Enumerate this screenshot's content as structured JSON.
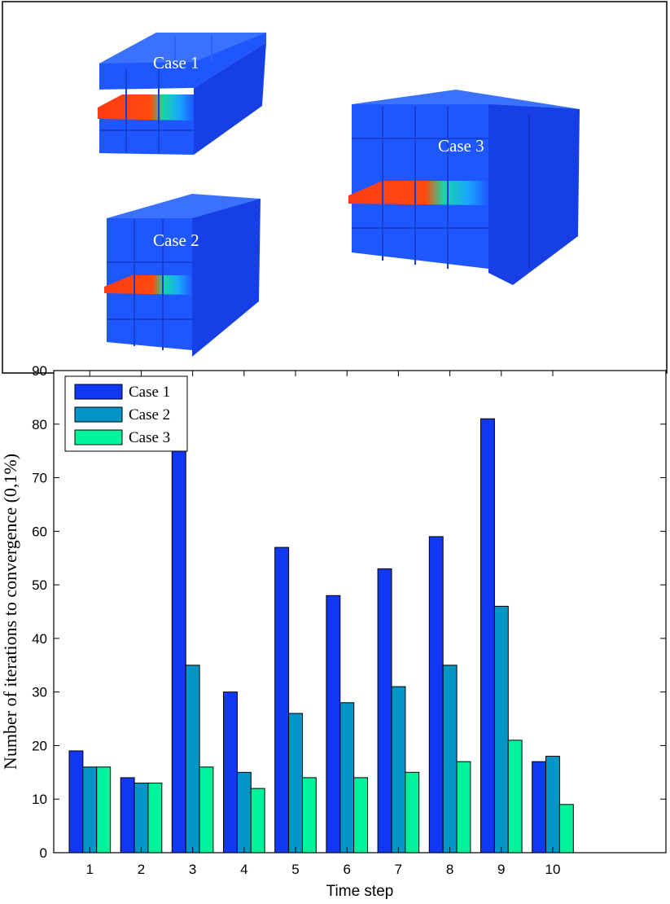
{
  "illustration": {
    "labels": [
      "Case 1",
      "Case 2",
      "Case 3"
    ],
    "colors": {
      "mesh": "#1f57ff",
      "hot": "#ff3b14",
      "cool": "#00c9d8"
    }
  },
  "chart_data": {
    "type": "bar",
    "title": "",
    "xlabel": "Time step",
    "ylabel": "Number of iterations to convergence (0,1%)",
    "categories": [
      "1",
      "2",
      "3",
      "4",
      "5",
      "6",
      "7",
      "8",
      "9",
      "10"
    ],
    "ylim": [
      0,
      90
    ],
    "yticks": [
      0,
      10,
      20,
      30,
      40,
      50,
      60,
      70,
      80,
      90
    ],
    "xlim": [
      0.3,
      12.2
    ],
    "grid": false,
    "legend_position": "top-left",
    "series": [
      {
        "name": "Case 1",
        "color": "#1238f5",
        "values": [
          19,
          14,
          75,
          30,
          57,
          48,
          53,
          59,
          81,
          17
        ]
      },
      {
        "name": "Case 2",
        "color": "#0495c7",
        "values": [
          16,
          13,
          35,
          15,
          26,
          28,
          31,
          35,
          46,
          18
        ]
      },
      {
        "name": "Case 3",
        "color": "#00f39a",
        "values": [
          16,
          13,
          16,
          12,
          14,
          14,
          15,
          17,
          21,
          9
        ]
      }
    ]
  }
}
